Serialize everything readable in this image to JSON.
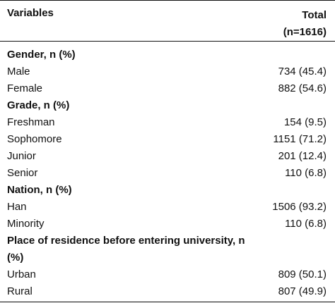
{
  "header": {
    "variables_label": "Variables",
    "total_label": "Total",
    "total_n": "(n=1616)"
  },
  "rows": [
    {
      "type": "section",
      "label": "Gender, n (%)",
      "value": ""
    },
    {
      "type": "item",
      "label": "Male",
      "value": "734 (45.4)"
    },
    {
      "type": "item",
      "label": "Female",
      "value": "882 (54.6)"
    },
    {
      "type": "section",
      "label": "Grade, n (%)",
      "value": ""
    },
    {
      "type": "item",
      "label": "Freshman",
      "value": "154 (9.5)"
    },
    {
      "type": "item",
      "label": "Sophomore",
      "value": "1151 (71.2)"
    },
    {
      "type": "item",
      "label": "Junior",
      "value": "201 (12.4)"
    },
    {
      "type": "item",
      "label": "Senior",
      "value": "110 (6.8)"
    },
    {
      "type": "section",
      "label": "Nation, n (%)",
      "value": ""
    },
    {
      "type": "item",
      "label": "Han",
      "value": "1506 (93.2)"
    },
    {
      "type": "item",
      "label": "Minority",
      "value": "110 (6.8)"
    },
    {
      "type": "section-wrap",
      "label": "Place of residence before entering university, n (%)",
      "value": ""
    },
    {
      "type": "item",
      "label": "Urban",
      "value": "809 (50.1)"
    },
    {
      "type": "item",
      "label": "Rural",
      "value": "807 (49.9)"
    }
  ]
}
